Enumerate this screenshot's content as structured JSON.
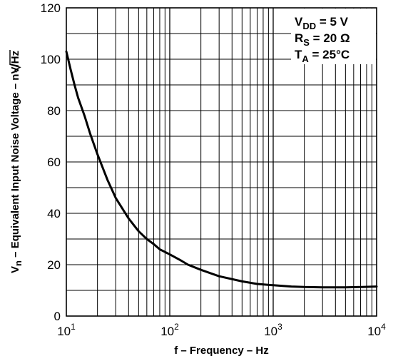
{
  "chart_data": {
    "type": "line",
    "xscale": "log",
    "xlim": [
      10,
      10000
    ],
    "ylim": [
      0,
      120
    ],
    "grid": true,
    "xlabel": "f – Frequency – Hz",
    "ylabel": {
      "main": "V",
      "sub": "n",
      "rest": " – Equivalent Input Noise Voltage – nV/",
      "unit": "Hz"
    },
    "x_ticks": [
      {
        "base": "10",
        "exp": "1",
        "value": 10
      },
      {
        "base": "10",
        "exp": "2",
        "value": 100
      },
      {
        "base": "10",
        "exp": "3",
        "value": 1000
      },
      {
        "base": "10",
        "exp": "4",
        "value": 10000
      }
    ],
    "y_ticks": [
      "0",
      "20",
      "40",
      "60",
      "80",
      "100",
      "120"
    ],
    "conditions": [
      {
        "main": "V",
        "sub": "DD",
        "rest": " = 5 V"
      },
      {
        "main": "R",
        "sub": "S",
        "rest": " = 20 Ω"
      },
      {
        "main": "T",
        "sub": "A",
        "rest": " = 25°C"
      }
    ],
    "series": [
      {
        "x": [
          10,
          11,
          12,
          13,
          15,
          17,
          20,
          25,
          30,
          40,
          50,
          60,
          70,
          80,
          100,
          130,
          150,
          200,
          300,
          500,
          700,
          1000,
          1500,
          2000,
          3000,
          5000,
          7000,
          10000
        ],
        "y": [
          103,
          96,
          90,
          85,
          78,
          71,
          63,
          53,
          46,
          38,
          33,
          30,
          28,
          26,
          24,
          21.5,
          20,
          18,
          15.5,
          13.5,
          12.5,
          12,
          11.5,
          11.3,
          11.2,
          11.2,
          11.3,
          11.5
        ]
      }
    ]
  }
}
